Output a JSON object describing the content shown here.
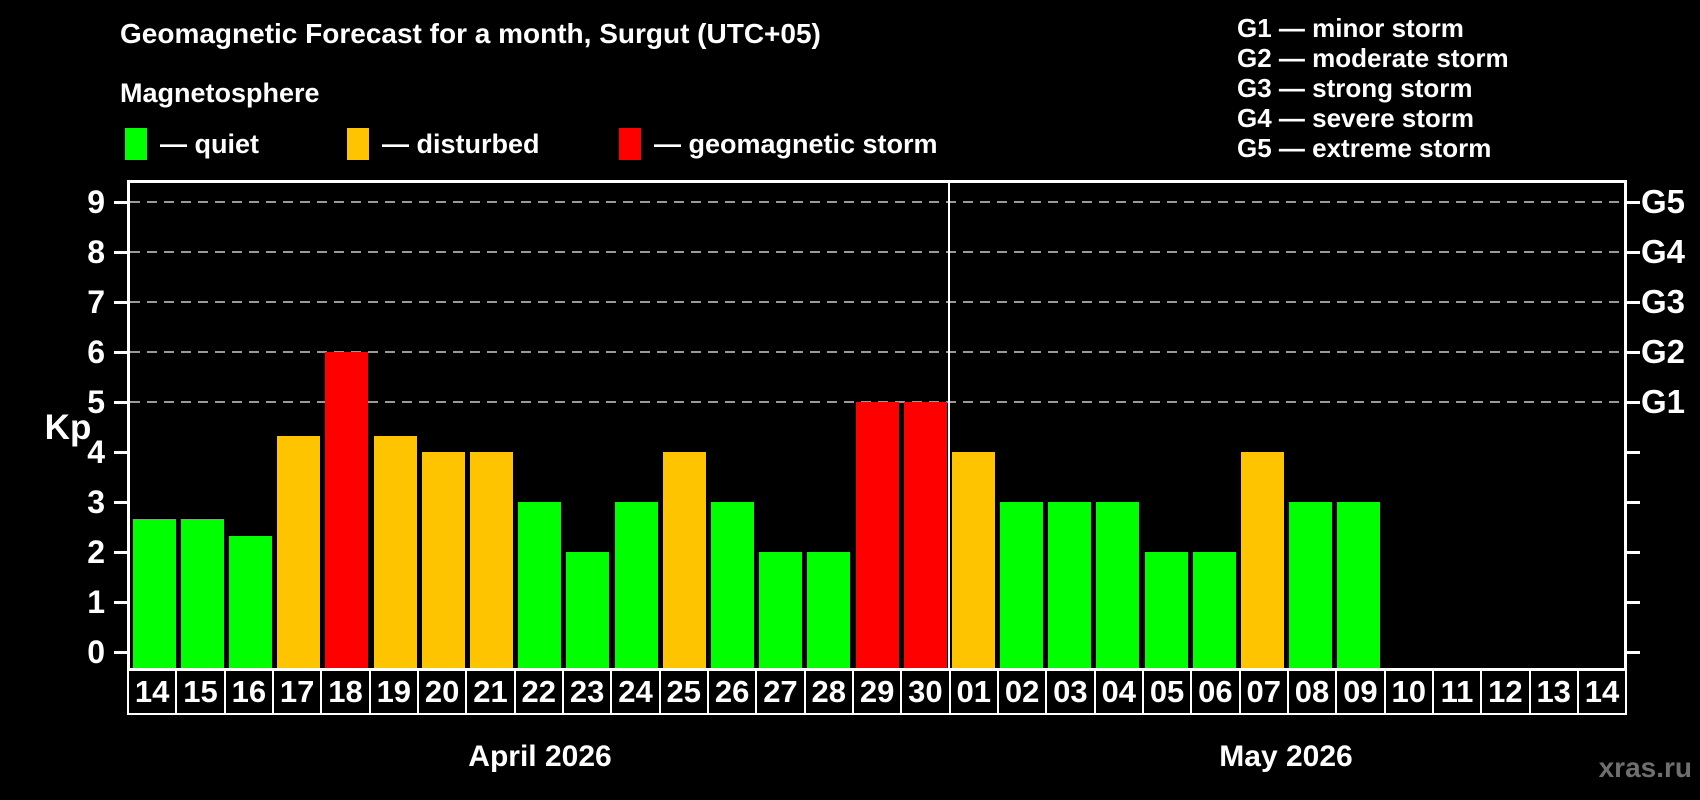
{
  "header": {
    "title": "Geomagnetic Forecast for a month, Surgut (UTC+05)"
  },
  "magnetosphere_legend": {
    "title": "Magnetosphere",
    "items": [
      {
        "name": "quiet",
        "label": "— quiet",
        "color": "#00ff00"
      },
      {
        "name": "disturbed",
        "label": "— disturbed",
        "color": "#ffc400"
      },
      {
        "name": "storm",
        "label": "— geomagnetic storm",
        "color": "#ff0000"
      }
    ]
  },
  "g_scale_legend": {
    "lines": [
      "G1 — minor storm",
      "G2 — moderate storm",
      "G3 — strong storm",
      "G4 — severe storm",
      "G5 — extreme storm"
    ]
  },
  "watermark": "xras.ru",
  "chart_data": {
    "type": "bar",
    "title": "Geomagnetic Forecast for a month, Surgut (UTC+05)",
    "ylabel": "Kp",
    "ylim": [
      0,
      9
    ],
    "y_ticks": [
      0,
      1,
      2,
      3,
      4,
      5,
      6,
      7,
      8,
      9
    ],
    "gridlines_at_kp": [
      5,
      6,
      7,
      8,
      9
    ],
    "grid_style": "dashed gray horizontal lines at Kp 5-9 only",
    "right_axis": [
      {
        "kp": 5,
        "label": "G1"
      },
      {
        "kp": 6,
        "label": "G2"
      },
      {
        "kp": 7,
        "label": "G3"
      },
      {
        "kp": 8,
        "label": "G4"
      },
      {
        "kp": 9,
        "label": "G5"
      }
    ],
    "status_colors": {
      "quiet": "#00ff00",
      "disturbed": "#ffc400",
      "storm": "#ff0000"
    },
    "months": [
      {
        "label": "April 2026",
        "key": "april",
        "days": [
          {
            "day": "14",
            "kp": 2.67,
            "status": "quiet"
          },
          {
            "day": "15",
            "kp": 2.67,
            "status": "quiet"
          },
          {
            "day": "16",
            "kp": 2.33,
            "status": "quiet"
          },
          {
            "day": "17",
            "kp": 4.33,
            "status": "disturbed"
          },
          {
            "day": "18",
            "kp": 6,
            "status": "storm"
          },
          {
            "day": "19",
            "kp": 4.33,
            "status": "disturbed"
          },
          {
            "day": "20",
            "kp": 4,
            "status": "disturbed"
          },
          {
            "day": "21",
            "kp": 4,
            "status": "disturbed"
          },
          {
            "day": "22",
            "kp": 3,
            "status": "quiet"
          },
          {
            "day": "23",
            "kp": 2,
            "status": "quiet"
          },
          {
            "day": "24",
            "kp": 3,
            "status": "quiet"
          },
          {
            "day": "25",
            "kp": 4,
            "status": "disturbed"
          },
          {
            "day": "26",
            "kp": 3,
            "status": "quiet"
          },
          {
            "day": "27",
            "kp": 2,
            "status": "quiet"
          },
          {
            "day": "28",
            "kp": 2,
            "status": "quiet"
          },
          {
            "day": "29",
            "kp": 5,
            "status": "storm"
          },
          {
            "day": "30",
            "kp": 5,
            "status": "storm"
          }
        ]
      },
      {
        "label": "May 2026",
        "key": "may",
        "days": [
          {
            "day": "01",
            "kp": 4,
            "status": "disturbed"
          },
          {
            "day": "02",
            "kp": 3,
            "status": "quiet"
          },
          {
            "day": "03",
            "kp": 3,
            "status": "quiet"
          },
          {
            "day": "04",
            "kp": 3,
            "status": "quiet"
          },
          {
            "day": "05",
            "kp": 2,
            "status": "quiet"
          },
          {
            "day": "06",
            "kp": 2,
            "status": "quiet"
          },
          {
            "day": "07",
            "kp": 4,
            "status": "disturbed"
          },
          {
            "day": "08",
            "kp": 3,
            "status": "quiet"
          },
          {
            "day": "09",
            "kp": 3,
            "status": "quiet"
          },
          {
            "day": "10",
            "kp": null,
            "status": null
          },
          {
            "day": "11",
            "kp": null,
            "status": null
          },
          {
            "day": "12",
            "kp": null,
            "status": null
          },
          {
            "day": "13",
            "kp": null,
            "status": null
          },
          {
            "day": "14",
            "kp": null,
            "status": null
          }
        ]
      }
    ]
  }
}
